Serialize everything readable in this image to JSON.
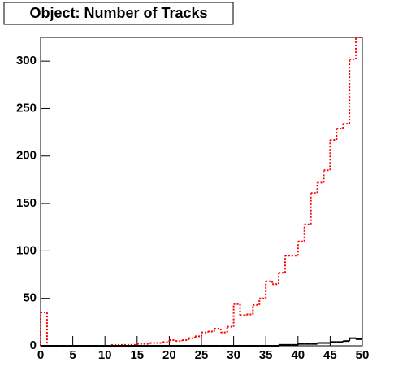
{
  "chart_data": {
    "type": "histogram",
    "title": "Object: Number of Tracks",
    "bins": [
      0,
      1,
      2,
      3,
      4,
      5,
      6,
      7,
      8,
      9,
      10,
      11,
      12,
      13,
      14,
      15,
      16,
      17,
      18,
      19,
      20,
      21,
      22,
      23,
      24,
      25,
      26,
      27,
      28,
      29,
      30,
      31,
      32,
      33,
      34,
      35,
      36,
      37,
      38,
      39,
      40,
      41,
      42,
      43,
      44,
      45,
      46,
      47,
      48,
      49,
      50
    ],
    "series": [
      {
        "color": "#ff0000",
        "dashed": true,
        "values": [
          35,
          0,
          0,
          0,
          0,
          0,
          0,
          0,
          0,
          0,
          0,
          1,
          1,
          1,
          1,
          2,
          2,
          3,
          3,
          4,
          6,
          5,
          6,
          8,
          10,
          14,
          15,
          18,
          14,
          20,
          44,
          32,
          33,
          43,
          50,
          68,
          65,
          77,
          95,
          95,
          110,
          128,
          161,
          172,
          185,
          217,
          229,
          234,
          302,
          325
        ]
      },
      {
        "color": "#000000",
        "dashed": false,
        "values": [
          0,
          0,
          0,
          0,
          0,
          0,
          0,
          0,
          0,
          0,
          0,
          0,
          0,
          0,
          0,
          0,
          0,
          0,
          0,
          0,
          0,
          0,
          0,
          0,
          0,
          0,
          0,
          0,
          0,
          0,
          0,
          0,
          0,
          0,
          0,
          0,
          0,
          1,
          1,
          1,
          2,
          2,
          2,
          3,
          3,
          4,
          4,
          5,
          8,
          7
        ]
      }
    ],
    "xlim": [
      0,
      50
    ],
    "xticks": [
      0,
      5,
      10,
      15,
      20,
      25,
      30,
      35,
      40,
      45,
      50
    ],
    "ylim": [
      0,
      325
    ],
    "yticks": [
      0,
      50,
      100,
      150,
      200,
      250,
      300
    ]
  }
}
